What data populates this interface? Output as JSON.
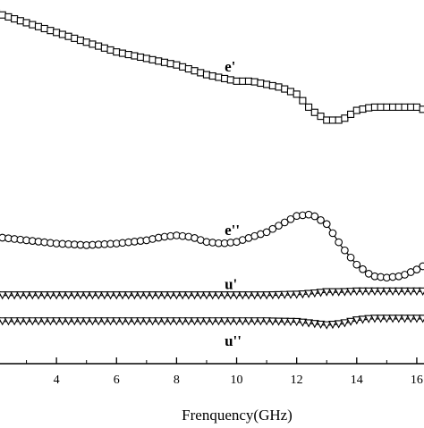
{
  "chart_data": {
    "type": "line",
    "xlabel": "Frenquency(GHz)",
    "ylabel": "",
    "title": "",
    "xlim": [
      2,
      16.3
    ],
    "ylim": [
      -0.6,
      10.6
    ],
    "x_ticks": [
      4,
      6,
      8,
      10,
      12,
      14,
      16
    ],
    "tick_labels": [
      "4",
      "6",
      "8",
      "10",
      "12",
      "14",
      "16"
    ],
    "grid": false,
    "legend": "none",
    "series": [
      {
        "name": "e'",
        "marker": "square",
        "x": [
          2,
          3,
          4,
          5,
          6,
          7,
          8,
          9,
          10,
          10.5,
          11,
          11.5,
          12,
          12.5,
          13,
          13.5,
          14,
          14.5,
          15,
          15.5,
          16,
          16.3
        ],
        "y": [
          10.2,
          9.9,
          9.6,
          9.3,
          9.0,
          8.8,
          8.6,
          8.3,
          8.1,
          8.1,
          8.0,
          7.9,
          7.7,
          7.2,
          6.9,
          6.9,
          7.2,
          7.3,
          7.3,
          7.3,
          7.3,
          7.2
        ]
      },
      {
        "name": "e''",
        "marker": "circle",
        "x": [
          2,
          3,
          4,
          5,
          6,
          7,
          7.5,
          8,
          8.5,
          9,
          9.5,
          10,
          10.5,
          11,
          11.5,
          12,
          12.5,
          13,
          13.5,
          14,
          14.5,
          15,
          15.5,
          16,
          16.3
        ],
        "y": [
          3.3,
          3.2,
          3.1,
          3.05,
          3.1,
          3.2,
          3.3,
          3.35,
          3.3,
          3.15,
          3.1,
          3.15,
          3.3,
          3.45,
          3.7,
          3.95,
          4.0,
          3.7,
          3.0,
          2.45,
          2.1,
          2.05,
          2.1,
          2.3,
          2.45
        ]
      },
      {
        "name": "u'",
        "marker": "triangle-down",
        "x": [
          2,
          3,
          4,
          5,
          6,
          7,
          8,
          9,
          10,
          11,
          12,
          12.5,
          13,
          13.5,
          14,
          15,
          16,
          16.3
        ],
        "y": [
          1.5,
          1.5,
          1.5,
          1.5,
          1.5,
          1.5,
          1.5,
          1.5,
          1.5,
          1.5,
          1.52,
          1.55,
          1.6,
          1.6,
          1.62,
          1.62,
          1.62,
          1.62
        ]
      },
      {
        "name": "u''",
        "marker": "triangle-down",
        "x": [
          2,
          3,
          4,
          5,
          6,
          7,
          8,
          9,
          10,
          11,
          12,
          12.5,
          13,
          13.5,
          14,
          14.5,
          15,
          16,
          16.3
        ],
        "y": [
          0.7,
          0.7,
          0.7,
          0.7,
          0.7,
          0.7,
          0.7,
          0.7,
          0.7,
          0.7,
          0.68,
          0.63,
          0.58,
          0.62,
          0.73,
          0.78,
          0.78,
          0.78,
          0.78
        ]
      }
    ]
  }
}
